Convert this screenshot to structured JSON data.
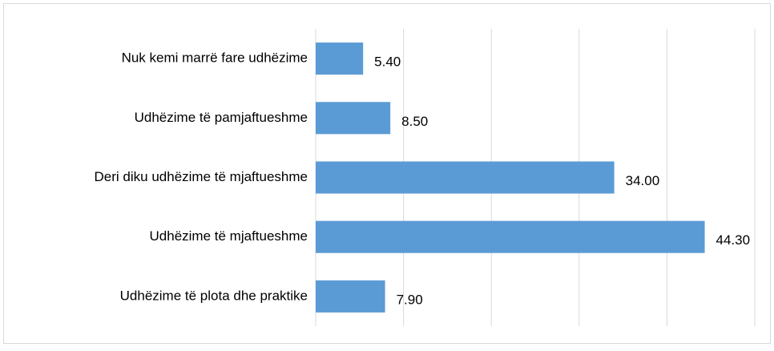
{
  "chart_data": {
    "type": "barh",
    "categories": [
      "Nuk kemi marrë fare udhëzime",
      "Udhëzime të pamjaftueshme",
      "Deri diku udhëzime të mjaftueshme",
      "Udhëzime të mjaftueshme",
      "Udhëzime të plota dhe praktike"
    ],
    "values": [
      5.4,
      8.5,
      34.0,
      44.3,
      7.9
    ],
    "value_labels": [
      "5.40",
      "8.50",
      "34.00",
      "44.30",
      "7.90"
    ],
    "color": "#5b9bd5",
    "xlim": [
      0,
      50
    ],
    "xticks": [
      0,
      10,
      20,
      30,
      40,
      50
    ],
    "grid": true
  }
}
